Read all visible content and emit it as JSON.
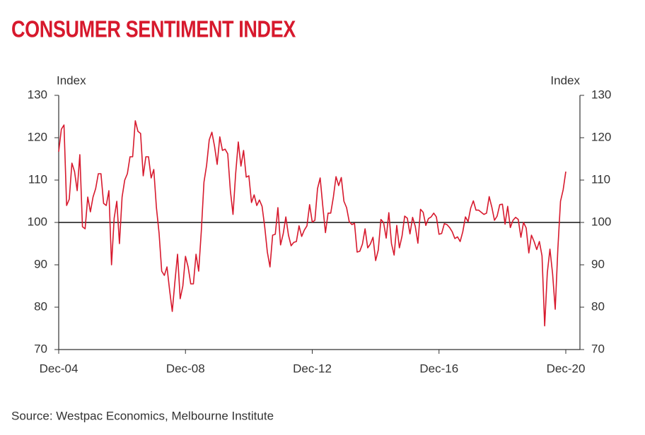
{
  "chart_data": {
    "type": "line",
    "title": "CONSUMER SENTIMENT INDEX",
    "ylabel": "Index",
    "y2label": "Index",
    "source": "Source: Westpac Economics, Melbourne Institute",
    "categories": [
      "Dec-04",
      null,
      null,
      null,
      null,
      null,
      null,
      null,
      null,
      null,
      null,
      null,
      null,
      null,
      null,
      null,
      null,
      null,
      null,
      null,
      null,
      null,
      null,
      null,
      null,
      null,
      null,
      null,
      null,
      null,
      null,
      null,
      null,
      null,
      null,
      null,
      null,
      null,
      null,
      null,
      null,
      null,
      null,
      null,
      null,
      null,
      null,
      null,
      "Dec-08",
      null,
      null,
      null,
      null,
      null,
      null,
      null,
      null,
      null,
      null,
      null,
      null,
      null,
      null,
      null,
      null,
      null,
      null,
      null,
      null,
      null,
      null,
      null,
      null,
      null,
      null,
      null,
      null,
      null,
      null,
      null,
      null,
      null,
      null,
      null,
      null,
      null,
      null,
      null,
      null,
      null,
      null,
      null,
      null,
      null,
      null,
      null,
      "Dec-12",
      null,
      null,
      null,
      null,
      null,
      null,
      null,
      null,
      null,
      null,
      null,
      null,
      null,
      null,
      null,
      null,
      null,
      null,
      null,
      null,
      null,
      null,
      null,
      null,
      null,
      null,
      null,
      null,
      null,
      null,
      null,
      null,
      null,
      null,
      null,
      null,
      null,
      null,
      null,
      null,
      null,
      null,
      null,
      null,
      null,
      null,
      null,
      "Dec-16",
      null,
      null,
      null,
      null,
      null,
      null,
      null,
      null,
      null,
      null,
      null,
      null,
      null,
      null,
      null,
      null,
      null,
      null,
      null,
      null,
      null,
      null,
      null,
      null,
      null,
      null,
      null,
      null,
      null,
      null,
      null,
      null,
      null,
      null,
      null,
      null,
      null,
      null,
      null,
      null,
      null,
      null,
      null,
      null,
      null,
      null,
      null,
      "Dec-20"
    ],
    "series": [
      {
        "name": "Consumer Sentiment Index",
        "color": "#d7192d",
        "values": [
          116.7,
          122,
          123,
          104,
          105.5,
          114,
          112,
          107.5,
          116,
          99,
          98.5,
          106,
          102.5,
          106,
          108,
          111.5,
          111.5,
          104.5,
          104,
          107.5,
          90,
          101,
          105,
          95,
          106,
          110,
          111.5,
          115.5,
          115.5,
          124,
          121.5,
          121,
          111,
          115.5,
          115.5,
          110.5,
          112.5,
          103.5,
          97.5,
          88.5,
          87.5,
          89.5,
          84,
          79,
          86,
          92.5,
          82,
          85,
          92,
          89.5,
          85.5,
          85.5,
          92.5,
          88.5,
          98,
          109.5,
          113.5,
          119.5,
          121.3,
          118,
          113.7,
          120.2,
          117,
          117.3,
          116.2,
          107.5,
          101.9,
          111.5,
          119,
          113.3,
          117,
          110.7,
          111,
          104.7,
          106.5,
          104,
          105.3,
          103.8,
          99,
          93,
          89.5,
          97,
          97.2,
          103.5,
          94.7,
          97.3,
          101.3,
          97,
          94.5,
          95.3,
          95.5,
          99.2,
          96.7,
          98.2,
          99.2,
          104.2,
          100.1,
          100.5,
          108,
          110.5,
          103.8,
          97.6,
          102.2,
          102.2,
          106,
          110.8,
          108.7,
          110.6,
          105,
          103.5,
          100.2,
          99.5,
          99.8,
          93,
          93.2,
          94.9,
          98.5,
          94,
          94.9,
          96.5,
          91,
          93.5,
          100.7,
          100,
          96.3,
          102.3,
          95,
          92.3,
          99.3,
          94,
          96.8,
          101.5,
          101,
          97.3,
          101.2,
          99.1,
          95.1,
          103.1,
          102.4,
          99.3,
          100.9,
          101.3,
          102.2,
          101.3,
          97.2,
          97.4,
          99.7,
          99.5,
          98.8,
          97.8,
          96.2,
          96.6,
          95.5,
          97.8,
          101.3,
          100.2,
          103.4,
          105.1,
          102.9,
          102.9,
          102.4,
          101.9,
          102.2,
          106.1,
          103.6,
          100.5,
          101.5,
          104.2,
          104.3,
          99.6,
          103.8,
          98.8,
          100.5,
          101.2,
          100.7,
          96.5,
          100,
          98.7,
          92.8,
          97,
          95.5,
          93.6,
          95.5,
          92.1,
          75.6,
          88.1,
          93.7,
          87.9,
          79.5,
          93.8,
          105,
          107.7,
          112
        ]
      }
    ],
    "ylim": [
      70,
      130
    ],
    "yticks": [
      70,
      80,
      90,
      100,
      110,
      120,
      130
    ],
    "y2lim": [
      70,
      130
    ],
    "y2ticks": [
      70,
      80,
      90,
      100,
      110,
      120,
      130
    ],
    "reference_line": 100,
    "grid": false
  }
}
